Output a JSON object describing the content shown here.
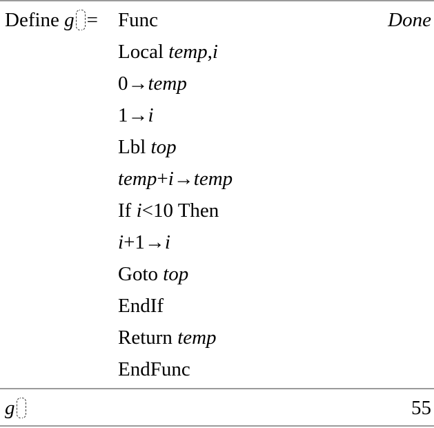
{
  "entries": [
    {
      "input_prefix": [
        {
          "t": "Define ",
          "i": false
        },
        {
          "t": "g",
          "i": true
        },
        {
          "t": "()",
          "paren": true
        },
        {
          "t": "=",
          "i": false
        }
      ],
      "code_lines": [
        [
          {
            "t": "Func",
            "i": false
          }
        ],
        [
          {
            "t": "Local ",
            "i": false
          },
          {
            "t": "temp",
            "i": true
          },
          {
            "t": ",",
            "i": false
          },
          {
            "t": "i",
            "i": true
          }
        ],
        [
          {
            "t": "0→",
            "i": false
          },
          {
            "t": "temp",
            "i": true
          }
        ],
        [
          {
            "t": "1→",
            "i": false
          },
          {
            "t": "i",
            "i": true
          }
        ],
        [
          {
            "t": "Lbl ",
            "i": false
          },
          {
            "t": "top",
            "i": true
          }
        ],
        [
          {
            "t": "temp",
            "i": true
          },
          {
            "t": "+",
            "i": false
          },
          {
            "t": "i",
            "i": true
          },
          {
            "t": "→",
            "i": false
          },
          {
            "t": "temp",
            "i": true
          }
        ],
        [
          {
            "t": "If ",
            "i": false
          },
          {
            "t": "i",
            "i": true
          },
          {
            "t": "<10 Then",
            "i": false
          }
        ],
        [
          {
            "t": "i",
            "i": true
          },
          {
            "t": "+1→",
            "i": false
          },
          {
            "t": "i",
            "i": true
          }
        ],
        [
          {
            "t": "Goto ",
            "i": false
          },
          {
            "t": "top",
            "i": true
          }
        ],
        [
          {
            "t": "EndIf",
            "i": false
          }
        ],
        [
          {
            "t": "Return ",
            "i": false
          },
          {
            "t": "temp",
            "i": true
          }
        ],
        [
          {
            "t": "EndFunc",
            "i": false
          }
        ]
      ],
      "result": "Done",
      "result_italic": true
    },
    {
      "input_prefix": [
        {
          "t": "g",
          "i": true
        },
        {
          "t": "()",
          "paren": true
        }
      ],
      "code_lines": [],
      "result": "55",
      "result_italic": false
    }
  ]
}
